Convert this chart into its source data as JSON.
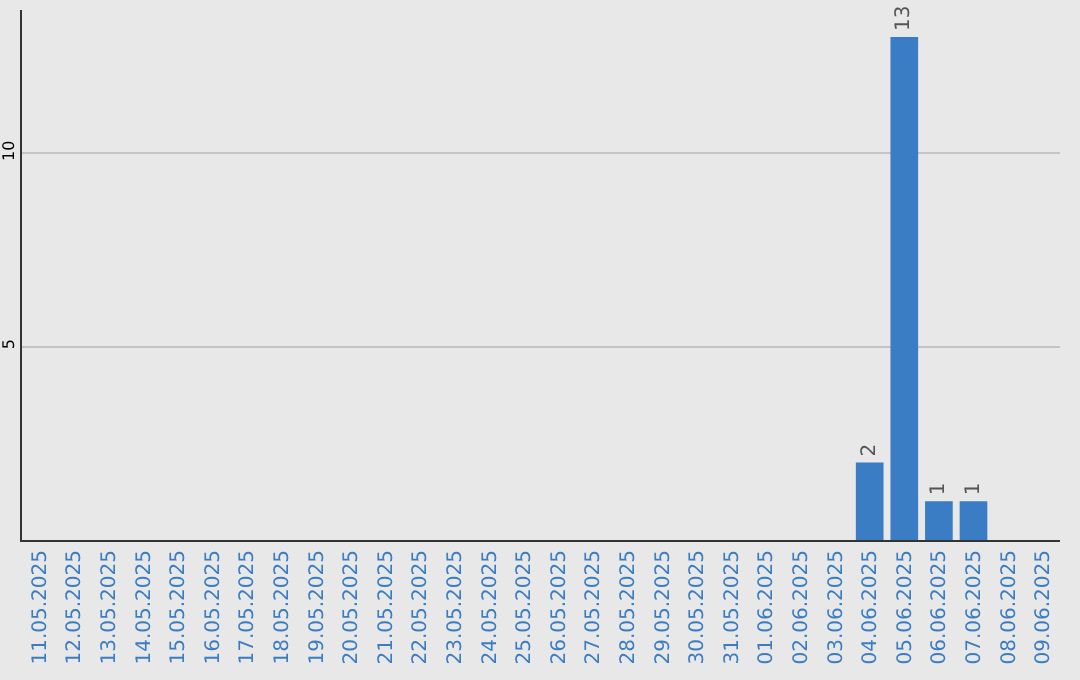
{
  "chart_data": {
    "type": "bar",
    "categories": [
      "11.05.2025",
      "12.05.2025",
      "13.05.2025",
      "14.05.2025",
      "15.05.2025",
      "16.05.2025",
      "17.05.2025",
      "18.05.2025",
      "19.05.2025",
      "20.05.2025",
      "21.05.2025",
      "22.05.2025",
      "23.05.2025",
      "24.05.2025",
      "25.05.2025",
      "26.05.2025",
      "27.05.2025",
      "28.05.2025",
      "29.05.2025",
      "30.05.2025",
      "31.05.2025",
      "01.06.2025",
      "02.06.2025",
      "03.06.2025",
      "04.06.2025",
      "05.06.2025",
      "06.06.2025",
      "07.06.2025",
      "08.06.2025",
      "09.06.2025"
    ],
    "values": [
      0,
      0,
      0,
      0,
      0,
      0,
      0,
      0,
      0,
      0,
      0,
      0,
      0,
      0,
      0,
      0,
      0,
      0,
      0,
      0,
      0,
      0,
      0,
      0,
      2,
      13,
      1,
      1,
      0,
      0
    ],
    "value_labels": [
      null,
      null,
      null,
      null,
      null,
      null,
      null,
      null,
      null,
      null,
      null,
      null,
      null,
      null,
      null,
      null,
      null,
      null,
      null,
      null,
      null,
      null,
      null,
      null,
      "2",
      "13",
      "1",
      "1",
      null,
      null
    ],
    "color": "#3a7dc4",
    "ylim": [
      0,
      13.7
    ],
    "yticks": [
      5,
      10
    ],
    "grid": "y",
    "legend": false
  }
}
